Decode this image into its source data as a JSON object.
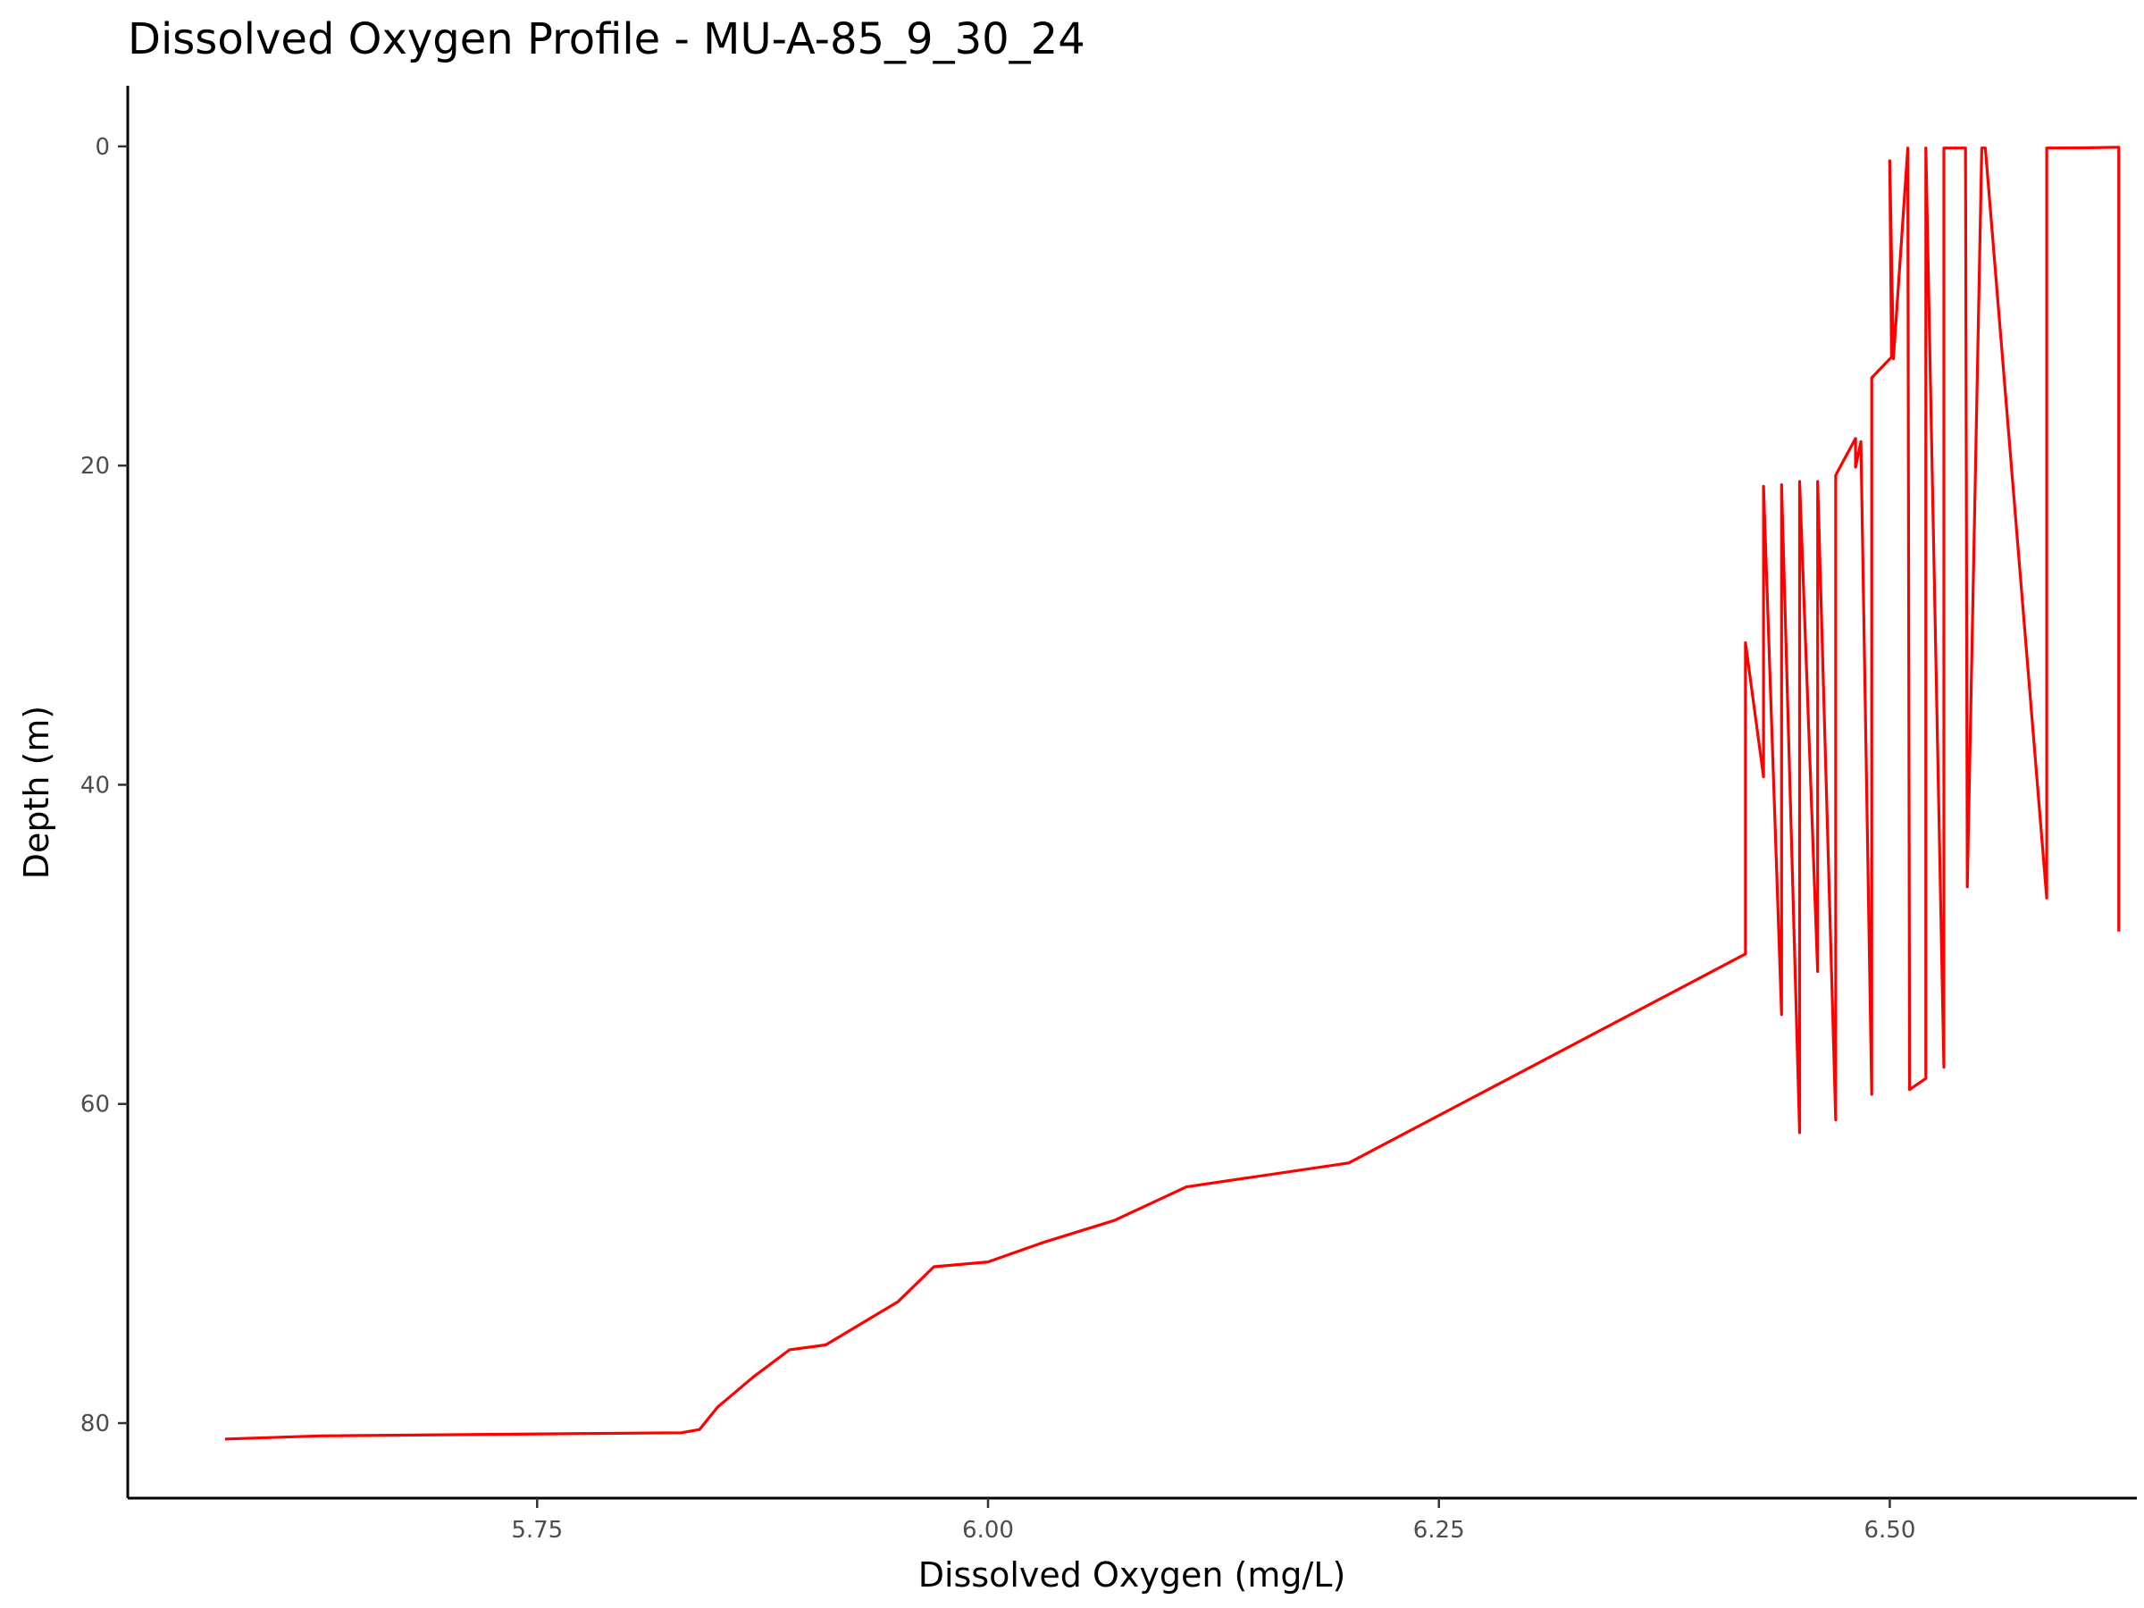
{
  "chart_data": {
    "type": "line",
    "title": "Dissolved Oxygen Profile - MU-A-85_9_30_24",
    "xlabel": "Dissolved Oxygen (mg/L)",
    "ylabel": "Depth (m)",
    "xlim": [
      5.523,
      6.637
    ],
    "ylim": [
      84.7,
      -3.8
    ],
    "y_reversed": true,
    "grid": false,
    "legend": "none",
    "x_ticks": [
      5.75,
      6.0,
      6.25,
      6.5
    ],
    "x_tick_labels": [
      "5.75",
      "6.00",
      "6.25",
      "6.50"
    ],
    "y_ticks": [
      0,
      20,
      40,
      60,
      80
    ],
    "y_tick_labels": [
      "0",
      "20",
      "40",
      "60",
      "80"
    ],
    "series": [
      {
        "color": "#ff0000",
        "x": [
          6.627,
          6.627,
          6.607,
          6.587,
          6.587,
          6.553,
          6.551,
          6.543,
          6.542,
          6.53,
          6.53,
          6.52,
          6.52,
          6.511,
          6.51,
          6.502,
          6.5,
          6.501,
          6.49,
          6.49,
          6.484,
          6.481,
          6.481,
          6.47,
          6.47,
          6.46,
          6.46,
          6.45,
          6.45,
          6.44,
          6.44,
          6.43,
          6.43,
          6.42,
          6.42,
          6.2,
          6.11,
          6.07,
          6.03,
          6.0,
          5.97,
          5.95,
          5.91,
          5.89,
          5.87,
          5.85,
          5.84,
          5.83,
          5.63,
          5.577
        ],
        "y": [
          49.2,
          0.05,
          0.09,
          0.1,
          47.1,
          0.1,
          0.1,
          46.4,
          0.1,
          0.1,
          57.7,
          0.1,
          58.4,
          59.1,
          0.1,
          13.3,
          0.9,
          13.2,
          14.5,
          59.4,
          18.5,
          20.1,
          18.3,
          20.6,
          61.0,
          21.0,
          51.7,
          21.0,
          61.8,
          21.2,
          54.4,
          21.3,
          39.5,
          31.1,
          50.6,
          63.7,
          65.2,
          67.3,
          68.7,
          69.9,
          70.2,
          72.4,
          75.1,
          75.4,
          77.1,
          79.0,
          80.4,
          80.6,
          80.8,
          81.0
        ]
      }
    ]
  }
}
